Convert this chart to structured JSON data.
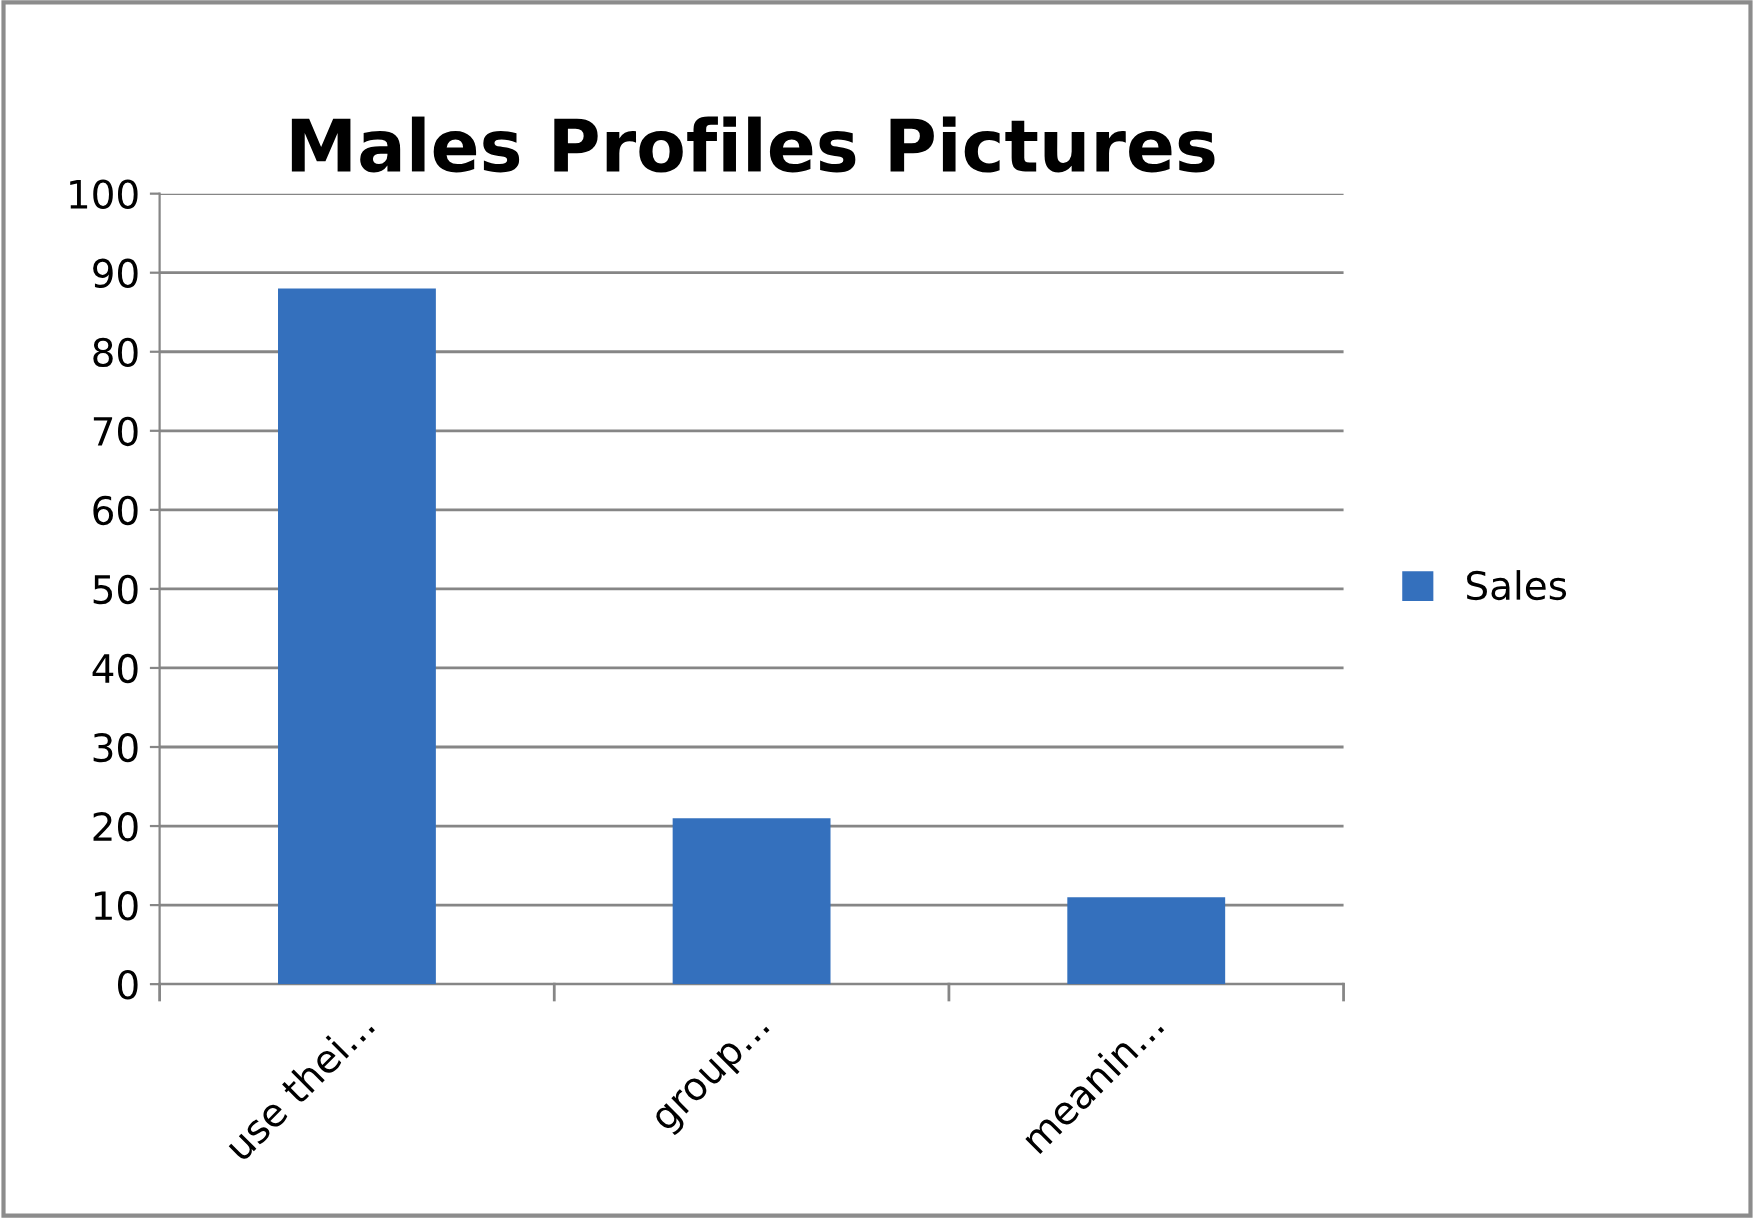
{
  "chart_data": {
    "type": "bar",
    "title": "Males Profiles Pictures",
    "categories": [
      "use thei...",
      "group...",
      "meanin..."
    ],
    "series": [
      {
        "name": "Sales",
        "color": "#3470bd",
        "values": [
          88,
          21,
          11
        ]
      }
    ],
    "ylim": [
      0,
      100
    ],
    "yticks": [
      0,
      10,
      20,
      30,
      40,
      50,
      60,
      70,
      80,
      90,
      100
    ],
    "grid": "y",
    "legend": "right"
  }
}
